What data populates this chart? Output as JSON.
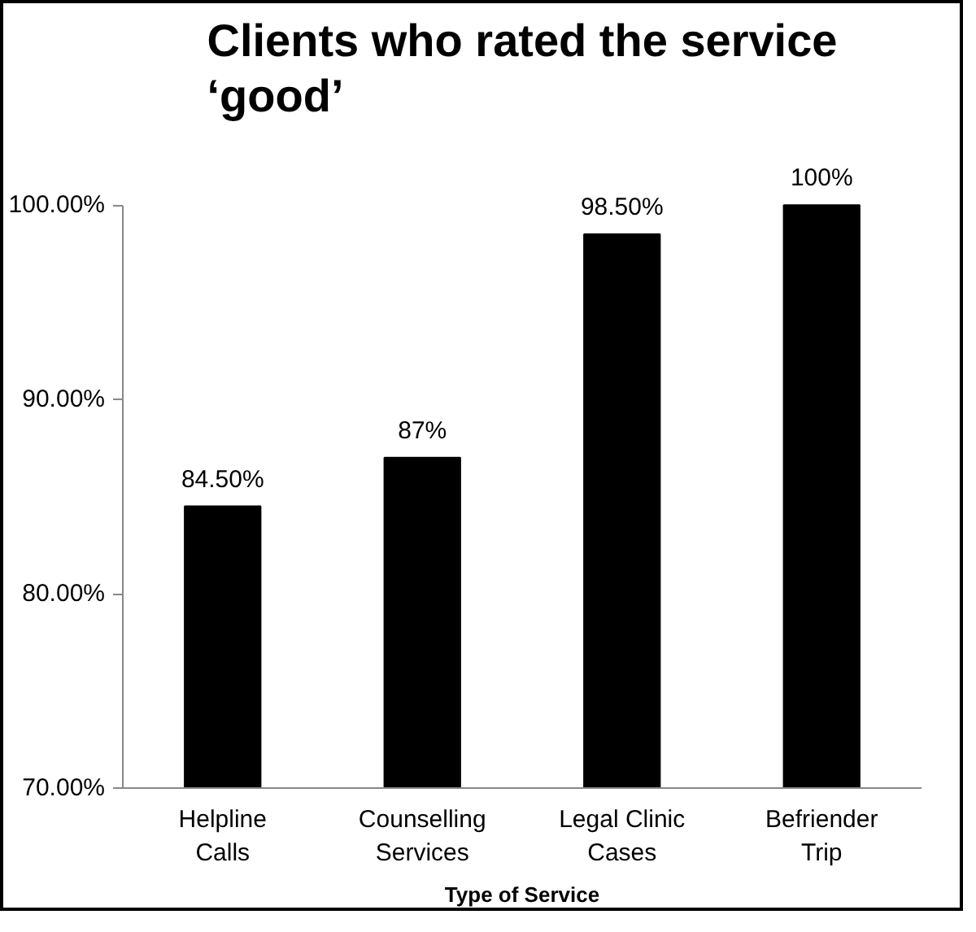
{
  "chart_data": {
    "type": "bar",
    "title": "Clients who rated the service ‘good’",
    "xlabel": "Type of Service",
    "categories": [
      "Helpline Calls",
      "Counselling Services",
      "Legal Clinic Cases",
      "Befriender Trip"
    ],
    "values": [
      84.5,
      87,
      98.5,
      100
    ],
    "color": "#000000",
    "value_labels": [
      "84.50%",
      "87%",
      "98.50%",
      "100%"
    ],
    "ylim": [
      70,
      100
    ],
    "yticks": [
      {
        "value": 70,
        "label": "70.00%"
      },
      {
        "value": 80,
        "label": "80.00%"
      },
      {
        "value": 90,
        "label": "90.00%"
      },
      {
        "value": 100,
        "label": "100.00%"
      }
    ],
    "grid": false
  }
}
